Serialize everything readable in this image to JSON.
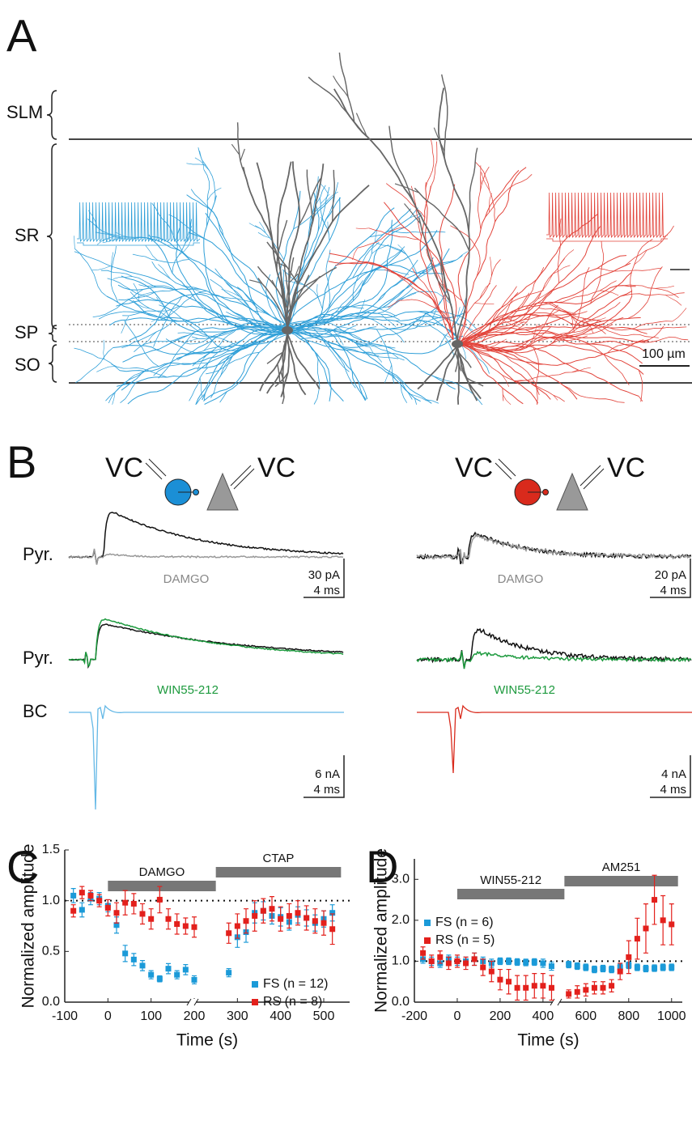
{
  "panel_labels": [
    "A",
    "B",
    "C",
    "D"
  ],
  "panel_a": {
    "layers": [
      "SLM",
      "SR",
      "SP",
      "SO"
    ],
    "scale_bar": "100 µm"
  },
  "panel_b": {
    "left": {
      "electrodes": [
        "VC",
        "VC"
      ],
      "traces": [
        "Pyr.",
        "Pyr.",
        "BC"
      ],
      "drugs": [
        "DAMGO",
        "WIN55-212"
      ],
      "scale_bars": [
        [
          "30 pA",
          "4 ms"
        ],
        [
          "6 nA",
          "4 ms"
        ]
      ]
    },
    "right": {
      "electrodes": [
        "VC",
        "VC"
      ],
      "drugs": [
        "DAMGO",
        "WIN55-212"
      ],
      "scale_bars": [
        [
          "20 pA",
          "4 ms"
        ],
        [
          "4 nA",
          "4 ms"
        ]
      ]
    }
  },
  "chart_data": [
    {
      "type": "scatter",
      "x_label": "Time (s)",
      "y_label": "Normalized amplitude",
      "xlim": [
        -100,
        560
      ],
      "xticks": [
        -100,
        0,
        100,
        200,
        300,
        400,
        500
      ],
      "ylim": [
        0,
        1.5
      ],
      "yticks": [
        {
          "value": 0,
          "label": "0.0"
        },
        0.5,
        {
          "value": 1,
          "label": "1.0"
        },
        1.5
      ],
      "reference_line": 1,
      "legend": "lower right",
      "periods": [
        {
          "label": "DAMGO",
          "start": 0,
          "end": 250
        },
        {
          "label": "CTAP",
          "start": 250,
          "end": 540
        }
      ],
      "x": [
        -80,
        -60,
        -40,
        -20,
        0,
        20,
        40,
        60,
        80,
        100,
        120,
        140,
        160,
        180,
        200,
        280,
        300,
        320,
        340,
        360,
        380,
        400,
        420,
        440,
        460,
        480,
        500,
        520
      ],
      "series": [
        {
          "name": "FS (n = 12)",
          "color": "#1b9ad8",
          "values": [
            1.05,
            0.91,
            1.02,
            1.02,
            0.95,
            0.76,
            0.48,
            0.42,
            0.36,
            0.27,
            0.23,
            0.33,
            0.27,
            0.32,
            0.22,
            0.29,
            0.64,
            0.69,
            0.88,
            0.9,
            0.85,
            0.84,
            0.79,
            0.86,
            0.83,
            0.78,
            0.82,
            0.88
          ],
          "errors": [
            0.07,
            0.07,
            0.06,
            0.06,
            0.06,
            0.08,
            0.08,
            0.06,
            0.05,
            0.04,
            0.03,
            0.05,
            0.04,
            0.05,
            0.04,
            0.04,
            0.1,
            0.1,
            0.1,
            0.09,
            0.08,
            0.09,
            0.08,
            0.08,
            0.08,
            0.08,
            0.08,
            0.08
          ]
        },
        {
          "name": "RS (n = 8)",
          "color": "#e3201c",
          "values": [
            0.9,
            1.08,
            1.05,
            1.0,
            0.93,
            0.88,
            0.98,
            0.97,
            0.87,
            0.82,
            1.01,
            0.82,
            0.77,
            0.75,
            0.74,
            0.68,
            0.75,
            0.8,
            0.85,
            0.9,
            0.92,
            0.82,
            0.85,
            0.88,
            0.83,
            0.8,
            0.78,
            0.72
          ],
          "errors": [
            0.06,
            0.06,
            0.05,
            0.06,
            0.08,
            0.1,
            0.12,
            0.1,
            0.1,
            0.1,
            0.13,
            0.1,
            0.1,
            0.08,
            0.1,
            0.1,
            0.12,
            0.12,
            0.15,
            0.12,
            0.12,
            0.12,
            0.12,
            0.12,
            0.12,
            0.12,
            0.12,
            0.15
          ]
        }
      ]
    },
    {
      "type": "scatter",
      "x_label": "Time (s)",
      "y_label": "Normalized amplitude",
      "xlim": [
        -200,
        1050
      ],
      "xticks": [
        -200,
        0,
        200,
        400,
        600,
        800,
        1000
      ],
      "ylim": [
        0,
        3.5
      ],
      "yticks": [
        {
          "value": 0,
          "label": "0.0"
        },
        {
          "value": 1,
          "label": "1.0"
        },
        {
          "value": 2,
          "label": "2.0"
        },
        {
          "value": 3,
          "label": "3.0"
        }
      ],
      "reference_line": 1,
      "legend": "center left",
      "periods": [
        {
          "label": "WIN55-212",
          "start": 0,
          "end": 500
        },
        {
          "label": "AM251",
          "start": 500,
          "end": 1030
        }
      ],
      "x": [
        -160,
        -120,
        -80,
        -40,
        0,
        40,
        80,
        120,
        160,
        200,
        240,
        280,
        320,
        360,
        400,
        440,
        520,
        560,
        600,
        640,
        680,
        720,
        760,
        800,
        840,
        880,
        920,
        960,
        1000
      ],
      "series": [
        {
          "name": "FS (n = 6)",
          "color": "#1b9ad8",
          "values": [
            1.05,
            1.0,
            0.95,
            1.05,
            1.0,
            1.0,
            1.05,
            1.0,
            0.95,
            1.0,
            1.0,
            0.98,
            0.97,
            0.98,
            0.95,
            0.88,
            0.92,
            0.88,
            0.85,
            0.8,
            0.82,
            0.8,
            0.85,
            0.9,
            0.85,
            0.82,
            0.83,
            0.85,
            0.85
          ],
          "errors": [
            0.1,
            0.1,
            0.1,
            0.1,
            0.1,
            0.1,
            0.15,
            0.1,
            0.1,
            0.08,
            0.08,
            0.08,
            0.08,
            0.08,
            0.1,
            0.1,
            0.08,
            0.08,
            0.08,
            0.08,
            0.08,
            0.08,
            0.08,
            0.08,
            0.08,
            0.08,
            0.08,
            0.08,
            0.08
          ]
        },
        {
          "name": "RS (n = 5)",
          "color": "#e3201c",
          "values": [
            1.2,
            1.0,
            1.1,
            0.95,
            1.0,
            0.95,
            1.05,
            0.85,
            0.75,
            0.55,
            0.5,
            0.35,
            0.35,
            0.4,
            0.4,
            0.35,
            0.2,
            0.25,
            0.3,
            0.35,
            0.35,
            0.4,
            0.75,
            1.1,
            1.55,
            1.8,
            2.5,
            2.0,
            1.9
          ],
          "errors": [
            0.15,
            0.15,
            0.15,
            0.15,
            0.15,
            0.15,
            0.15,
            0.2,
            0.25,
            0.25,
            0.3,
            0.3,
            0.3,
            0.3,
            0.3,
            0.3,
            0.1,
            0.15,
            0.15,
            0.15,
            0.15,
            0.15,
            0.2,
            0.4,
            0.5,
            0.6,
            0.6,
            0.6,
            0.5
          ]
        }
      ]
    }
  ]
}
